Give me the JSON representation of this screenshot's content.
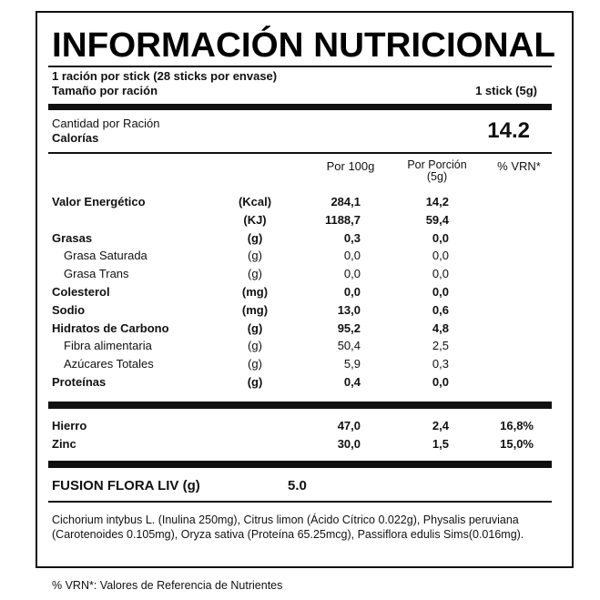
{
  "header": {
    "title": "INFORMACIÓN NUTRICIONAL",
    "servings": "1 ración por stick (28 sticks por envase)",
    "serving_size_label": "Tamaño por ración",
    "serving_size": "1 stick (5g)"
  },
  "calories": {
    "amount_label": "Cantidad por Ración",
    "label": "Calorías",
    "value": "14.2"
  },
  "table": {
    "columns": [
      "Por 100g",
      "Por Porción\n(5g)",
      "% VRN*"
    ],
    "rows": [
      {
        "name": "Valor Energético",
        "unit": "(Kcal)",
        "per_100g": "284,1",
        "per_portion": "14,2"
      },
      {
        "unit": "(KJ)",
        "per_100g": "1188,7",
        "per_portion": "59,4"
      },
      {
        "name": "Grasas",
        "unit": "(g)",
        "per_100g": "0,3",
        "per_portion": "0,0"
      },
      {
        "name": "Grasa Saturada",
        "unit": "(g)",
        "per_100g": "0,0",
        "per_portion": "0,0"
      },
      {
        "name": "Grasa Trans",
        "unit": "(g)",
        "per_100g": "0,0",
        "per_portion": "0,0"
      },
      {
        "name": "Colesterol",
        "unit": "(mg)",
        "per_100g": "0,0",
        "per_portion": "0,0"
      },
      {
        "name": "Sodio",
        "unit": "(mg)",
        "per_100g": "13,0",
        "per_portion": "0,6"
      },
      {
        "name": "Hidratos de Carbono",
        "unit": "(g)",
        "per_100g": "95,2",
        "per_portion": "4,8"
      },
      {
        "name": "Fibra alimentaria",
        "unit": "(g)",
        "per_100g": "50,4",
        "per_portion": "2,5"
      },
      {
        "name": "Azúcares Totales",
        "unit": "(g)",
        "per_100g": "5,9",
        "per_portion": "0,3"
      },
      {
        "name": "Proteínas",
        "unit": "(g)",
        "per_100g": "0,4",
        "per_portion": "0,0"
      }
    ]
  },
  "minerals": [
    {
      "name": "Hierro",
      "per_100g": "47,0",
      "per_portion": "2,4",
      "vrn": "16,8%"
    },
    {
      "name": "Zinc",
      "per_100g": "30,0",
      "per_portion": "1,5",
      "vrn": "15,0%"
    }
  ],
  "extra": {
    "name": "FUSION FLORA LIV (g)",
    "value": "5.0"
  },
  "ingredients": "Cichorium intybus L. (Inulina 250mg), Citrus limon (Ácido Cítrico 0.022g), Physalis peruviana (Carotenoides 0.105mg), Oryza sativa (Proteína 65.25mcg), Passiflora edulis Sims(0.016mg).",
  "footnote": "% VRN*: Valores de Referencia de Nutrientes"
}
